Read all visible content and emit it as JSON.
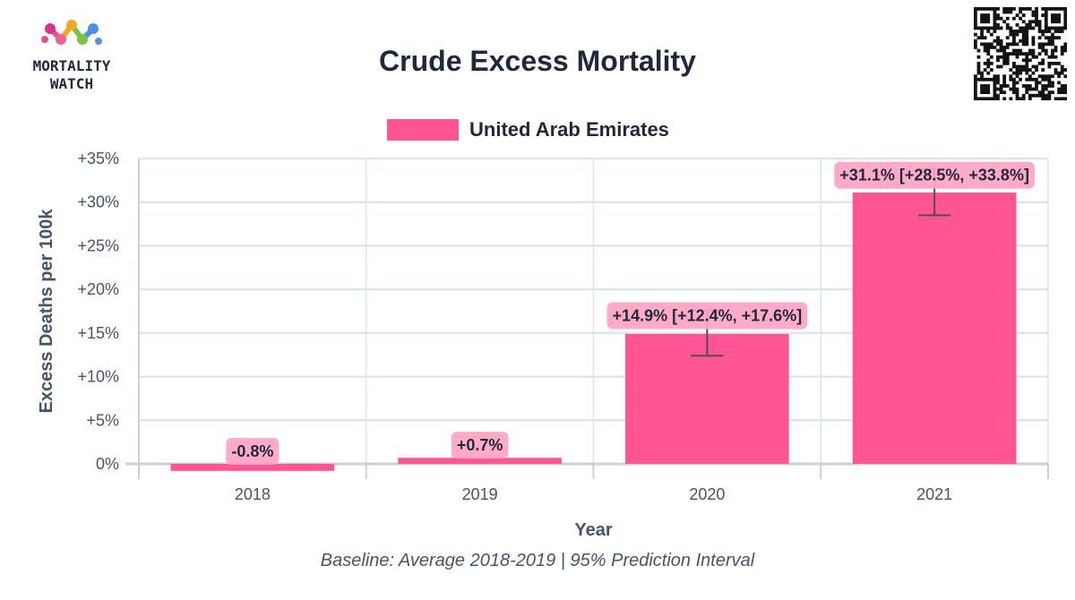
{
  "brand": {
    "line1": "MORTALITY",
    "line2": "WATCH"
  },
  "footer": "Baseline: Average 2018-2019 | 95% Prediction Interval",
  "colors": {
    "bar": "#ff5592",
    "label_bg": "#ffa3c4",
    "grid": "#dde4f2",
    "axis": "#c9d0dc",
    "text": "#1e293b",
    "error": "#5a4a55"
  },
  "chart_data": {
    "type": "bar",
    "title": "Crude Excess Mortality",
    "xlabel": "Year",
    "ylabel": "Excess Deaths per 100k",
    "categories": [
      "2018",
      "2019",
      "2020",
      "2021"
    ],
    "series": [
      {
        "name": "United Arab Emirates",
        "values": [
          -0.8,
          0.7,
          14.9,
          31.1
        ],
        "error_low": [
          null,
          null,
          12.4,
          28.5
        ],
        "error_high": [
          null,
          null,
          17.6,
          33.8
        ]
      }
    ],
    "data_labels": [
      "-0.8%",
      "+0.7%",
      "+14.9% [+12.4%, +17.6%]",
      "+31.1% [+28.5%, +33.8%]"
    ],
    "ylim": [
      0,
      35
    ],
    "yticks": [
      0,
      5,
      10,
      15,
      20,
      25,
      30,
      35
    ],
    "ytick_labels": [
      "0%",
      "+5%",
      "+10%",
      "+15%",
      "+20%",
      "+25%",
      "+30%",
      "+35%"
    ],
    "legend": "top-center",
    "grid": true
  }
}
